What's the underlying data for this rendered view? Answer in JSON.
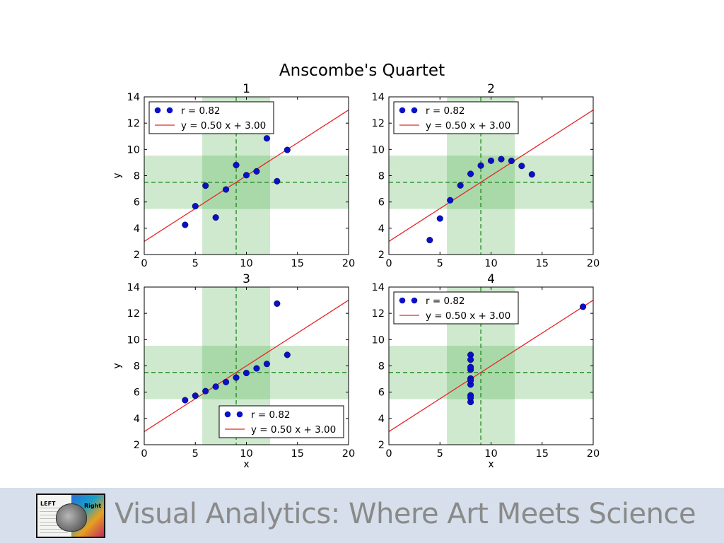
{
  "chart_data": {
    "type": "scatter",
    "title": "Anscombe's Quartet",
    "xlim": [
      0,
      20
    ],
    "ylim": [
      2,
      14
    ],
    "xticks": [
      0,
      5,
      10,
      15,
      20
    ],
    "yticks": [
      2,
      4,
      6,
      8,
      10,
      12,
      14
    ],
    "mean_x": 9,
    "mean_y": 7.5,
    "std_band_x": [
      5.68,
      12.32
    ],
    "std_band_y": [
      5.47,
      9.53
    ],
    "fit": {
      "slope": 0.5,
      "intercept": 3.0
    },
    "colors": {
      "points": "#0a10c8",
      "fit_line": "#e8262a",
      "band": "#3aa83a",
      "mean_line": "#1f8a1f"
    },
    "panels": [
      {
        "title": "1",
        "ylabel": "y",
        "xlabel": "",
        "legend_position": "upper-left",
        "legend": [
          "r = 0.82",
          "y = 0.50 x + 3.00"
        ],
        "x": [
          10,
          8,
          13,
          9,
          11,
          14,
          6,
          4,
          12,
          7,
          5
        ],
        "y": [
          8.04,
          6.95,
          7.58,
          8.81,
          8.33,
          9.96,
          7.24,
          4.26,
          10.84,
          4.82,
          5.68
        ]
      },
      {
        "title": "2",
        "ylabel": "",
        "xlabel": "",
        "legend_position": "upper-left",
        "legend": [
          "r = 0.82",
          "y = 0.50 x + 3.00"
        ],
        "x": [
          10,
          8,
          13,
          9,
          11,
          14,
          6,
          4,
          12,
          7,
          5
        ],
        "y": [
          9.14,
          8.14,
          8.74,
          8.77,
          9.26,
          8.1,
          6.13,
          3.1,
          9.13,
          7.26,
          4.74
        ]
      },
      {
        "title": "3",
        "ylabel": "y",
        "xlabel": "x",
        "legend_position": "lower-right",
        "legend": [
          "r = 0.82",
          "y = 0.50 x + 3.00"
        ],
        "x": [
          10,
          8,
          13,
          9,
          11,
          14,
          6,
          4,
          12,
          7,
          5
        ],
        "y": [
          7.46,
          6.77,
          12.74,
          7.11,
          7.81,
          8.84,
          6.08,
          5.39,
          8.15,
          6.42,
          5.73
        ]
      },
      {
        "title": "4",
        "ylabel": "",
        "xlabel": "x",
        "legend_position": "upper-left",
        "legend": [
          "r = 0.82",
          "y = 0.50 x + 3.00"
        ],
        "x": [
          8,
          8,
          8,
          8,
          8,
          8,
          8,
          19,
          8,
          8,
          8
        ],
        "y": [
          6.58,
          5.76,
          7.71,
          8.84,
          8.47,
          7.04,
          5.25,
          12.5,
          5.56,
          7.91,
          6.89
        ]
      }
    ]
  },
  "footer": {
    "title": "Visual Analytics: Where Art Meets Science",
    "logo_left_label": "LEFT",
    "logo_right_label": "Right"
  }
}
